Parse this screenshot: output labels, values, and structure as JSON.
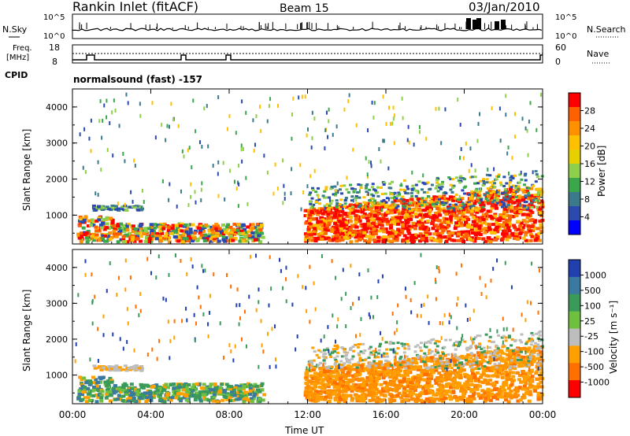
{
  "header": {
    "site": "Rankin Inlet (fitACF)",
    "beam": "Beam 15",
    "date": "03/Jan/2010"
  },
  "nsky_panel": {
    "left_label": "N.Sky",
    "right_label": "N.Search",
    "left_ticks": [
      "10^5",
      "10^0"
    ],
    "right_ticks": [
      "10^5",
      "10^0"
    ]
  },
  "freq_panel": {
    "left_label_line1": "Freq.",
    "left_label_line2": "[MHz]",
    "right_label": "Nave",
    "left_ticks": [
      "18",
      "8"
    ],
    "right_ticks": [
      "60",
      "0"
    ]
  },
  "cpid_panel": {
    "label": "CPID",
    "text": "normalsound (fast) -157"
  },
  "chart_data": [
    {
      "type": "heatmap",
      "name": "power",
      "ylabel": "Slant Range [km]",
      "ylim": [
        200,
        4500
      ],
      "yticks": [
        "1000",
        "2000",
        "3000",
        "4000"
      ],
      "xlim": [
        0,
        24
      ],
      "colorbar_label": "Power [dB]",
      "colorbar_ticks": [
        "28",
        "24",
        "20",
        "16",
        "12",
        "8",
        "4"
      ],
      "colors": [
        "#ff0000",
        "#ff6000",
        "#ff9000",
        "#ffc000",
        "#e6d000",
        "#8fd04a",
        "#3aa84a",
        "#3a7a8a",
        "#2a4ab0",
        "#0000ff"
      ]
    },
    {
      "type": "heatmap",
      "name": "velocity",
      "ylabel": "Slant Range [km]",
      "ylim": [
        200,
        4500
      ],
      "yticks": [
        "1000",
        "2000",
        "3000",
        "4000"
      ],
      "xlim": [
        0,
        24
      ],
      "colorbar_label": "Velocity [m s⁻¹]",
      "colorbar_ticks": [
        "1000",
        "500",
        "100",
        "25",
        "-25",
        "-100",
        "-500",
        "-1000"
      ],
      "colors": [
        "#2040b0",
        "#3a7aa0",
        "#3a9a5a",
        "#70c040",
        "#bdbdbd",
        "#ffa000",
        "#ff7000",
        "#ff0000"
      ]
    }
  ],
  "x_axis": {
    "ticks": [
      "00:00",
      "04:00",
      "08:00",
      "12:00",
      "16:00",
      "20:00",
      "00:00"
    ],
    "label": "Time UT"
  }
}
